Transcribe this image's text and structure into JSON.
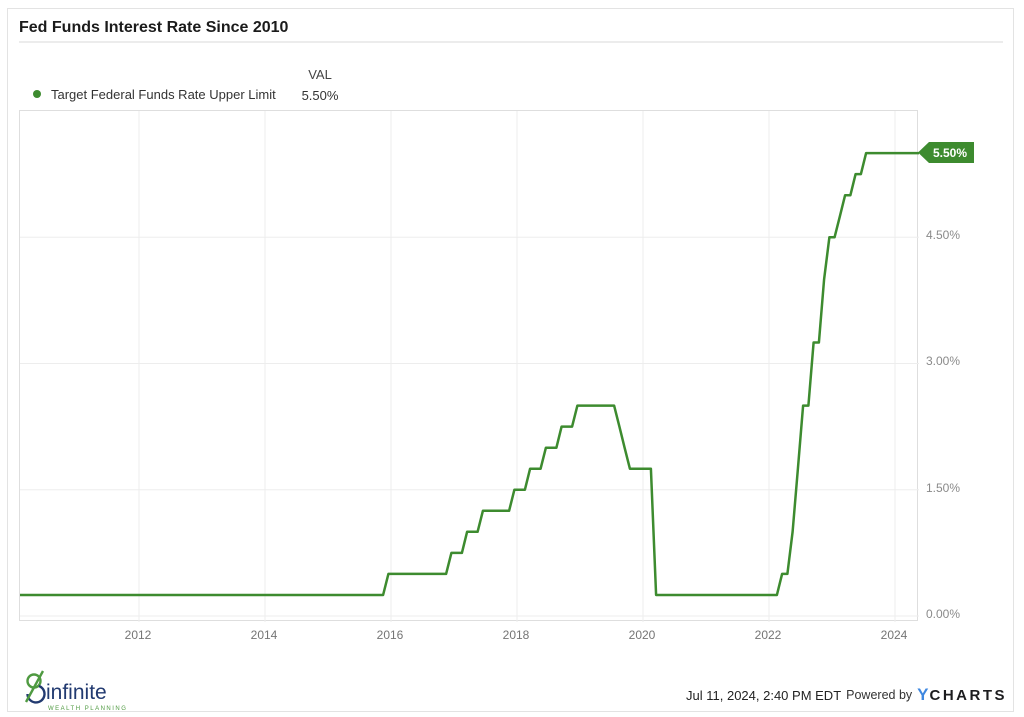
{
  "title": "Fed Funds Interest Rate Since 2010",
  "legend": {
    "series_label": "Target Federal Funds Rate Upper Limit",
    "val_header": "VAL",
    "val": "5.50%"
  },
  "chart_data": {
    "type": "line",
    "title": "Fed Funds Interest Rate Since 2010",
    "series_name": "Target Federal Funds Rate Upper Limit",
    "unit": "percent",
    "end_label": "5.50%",
    "latest_value": 5.5,
    "x_axis": {
      "tick_years": [
        2012,
        2014,
        2016,
        2018,
        2020,
        2022,
        2024
      ],
      "start": "2010-01",
      "end": "2024-07"
    },
    "y_axis": {
      "ticks": [
        {
          "label": "0.00%",
          "value": 0.0
        },
        {
          "label": "1.50%",
          "value": 1.5
        },
        {
          "label": "3.00%",
          "value": 3.0
        },
        {
          "label": "4.50%",
          "value": 4.5
        }
      ],
      "min": 0.0,
      "max": 6.0
    },
    "grid": true,
    "legend_position": "top-left",
    "rate_changes": [
      {
        "date": "2010-01",
        "rate": 0.25
      },
      {
        "date": "2015-12",
        "rate": 0.5
      },
      {
        "date": "2016-12",
        "rate": 0.75
      },
      {
        "date": "2017-03",
        "rate": 1.0
      },
      {
        "date": "2017-06",
        "rate": 1.25
      },
      {
        "date": "2017-12",
        "rate": 1.5
      },
      {
        "date": "2018-03",
        "rate": 1.75
      },
      {
        "date": "2018-06",
        "rate": 2.0
      },
      {
        "date": "2018-09",
        "rate": 2.25
      },
      {
        "date": "2018-12",
        "rate": 2.5
      },
      {
        "date": "2019-08",
        "rate": 2.25
      },
      {
        "date": "2019-09",
        "rate": 2.0
      },
      {
        "date": "2019-10",
        "rate": 1.75
      },
      {
        "date": "2020-03",
        "rate": 0.25
      },
      {
        "date": "2022-03",
        "rate": 0.5
      },
      {
        "date": "2022-05",
        "rate": 1.0
      },
      {
        "date": "2022-06",
        "rate": 1.75
      },
      {
        "date": "2022-07",
        "rate": 2.5
      },
      {
        "date": "2022-09",
        "rate": 3.25
      },
      {
        "date": "2022-11",
        "rate": 4.0
      },
      {
        "date": "2022-12",
        "rate": 4.5
      },
      {
        "date": "2023-02",
        "rate": 4.75
      },
      {
        "date": "2023-03",
        "rate": 5.0
      },
      {
        "date": "2023-05",
        "rate": 5.25
      },
      {
        "date": "2023-07",
        "rate": 5.5
      }
    ]
  },
  "colors": {
    "line_green": "#3d8b2f",
    "badge_green": "#3d8b2f",
    "grid_gray": "#ededed",
    "logo_navy": "#223a70",
    "logo_green": "#4f9a41",
    "ycharts_blue": "#3e87e0"
  },
  "footer": {
    "logo_text": "infinite",
    "logo_subtext": "WEALTH PLANNING",
    "timestamp": "Jul 11, 2024, 2:40 PM EDT",
    "powered_by": "Powered by",
    "ycharts_y": "Y",
    "ycharts_rest": "CHARTS"
  }
}
